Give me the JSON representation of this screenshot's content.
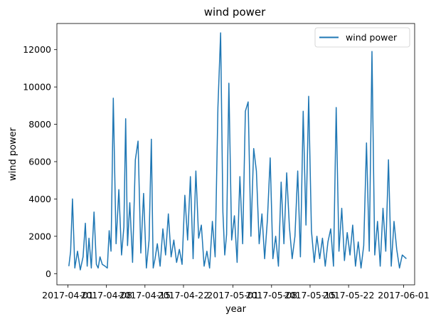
{
  "chart_data": {
    "type": "line",
    "title": "wind power",
    "xlabel": "year",
    "ylabel": "wind power",
    "x_ticks": [
      "2017-04-01",
      "2017-04-08",
      "2017-04-15",
      "2017-04-22",
      "2017-05-01",
      "2017-05-08",
      "2017-05-15",
      "2017-05-22",
      "2017-06-01"
    ],
    "y_ticks": [
      0,
      2000,
      4000,
      6000,
      8000,
      10000,
      12000
    ],
    "xlim": [
      "2017-03-30",
      "2017-06-03"
    ],
    "ylim": [
      -600,
      13400
    ],
    "legend": {
      "position": "top-right"
    },
    "grid": false,
    "series": [
      {
        "name": "wind power",
        "color": "#1f77b4",
        "x": [
          "2017-04-01",
          "2017-04-01",
          "2017-04-01",
          "2017-04-02",
          "2017-04-02",
          "2017-04-03",
          "2017-04-03",
          "2017-04-04",
          "2017-04-04",
          "2017-04-04",
          "2017-04-05",
          "2017-04-05",
          "2017-04-06",
          "2017-04-06",
          "2017-04-06",
          "2017-04-07",
          "2017-04-07",
          "2017-04-08",
          "2017-04-08",
          "2017-04-08",
          "2017-04-09",
          "2017-04-09",
          "2017-04-10",
          "2017-04-10",
          "2017-04-11",
          "2017-04-11",
          "2017-04-11",
          "2017-04-12",
          "2017-04-12",
          "2017-04-13",
          "2017-04-13",
          "2017-04-14",
          "2017-04-14",
          "2017-04-15",
          "2017-04-15",
          "2017-04-16",
          "2017-04-16",
          "2017-04-16",
          "2017-04-17",
          "2017-04-17",
          "2017-04-18",
          "2017-04-18",
          "2017-04-19",
          "2017-04-19",
          "2017-04-20",
          "2017-04-20",
          "2017-04-21",
          "2017-04-21",
          "2017-04-22",
          "2017-04-22",
          "2017-04-23",
          "2017-04-23",
          "2017-04-24",
          "2017-04-24",
          "2017-04-25",
          "2017-04-25",
          "2017-04-26",
          "2017-04-26",
          "2017-04-27",
          "2017-04-27",
          "2017-04-28",
          "2017-04-28",
          "2017-04-29",
          "2017-04-29",
          "2017-04-29",
          "2017-04-30",
          "2017-04-30",
          "2017-05-01",
          "2017-05-01",
          "2017-05-02",
          "2017-05-02",
          "2017-05-03",
          "2017-05-03",
          "2017-05-04",
          "2017-05-04",
          "2017-05-05",
          "2017-05-05",
          "2017-05-06",
          "2017-05-06",
          "2017-05-07",
          "2017-05-07",
          "2017-05-08",
          "2017-05-08",
          "2017-05-09",
          "2017-05-09",
          "2017-05-10",
          "2017-05-10",
          "2017-05-11",
          "2017-05-11",
          "2017-05-12",
          "2017-05-12",
          "2017-05-13",
          "2017-05-13",
          "2017-05-14",
          "2017-05-14",
          "2017-05-15",
          "2017-05-15",
          "2017-05-16",
          "2017-05-16",
          "2017-05-17",
          "2017-05-17",
          "2017-05-18",
          "2017-05-18",
          "2017-05-19",
          "2017-05-19",
          "2017-05-20",
          "2017-05-20",
          "2017-05-21",
          "2017-05-21",
          "2017-05-22",
          "2017-05-22",
          "2017-05-23",
          "2017-05-23",
          "2017-05-24",
          "2017-05-24",
          "2017-05-25",
          "2017-05-25",
          "2017-05-26",
          "2017-05-26",
          "2017-05-27",
          "2017-05-27",
          "2017-05-28",
          "2017-05-28",
          "2017-05-29",
          "2017-05-29",
          "2017-05-30",
          "2017-05-30",
          "2017-05-31",
          "2017-05-31",
          "2017-06-01"
        ],
        "values": [
          400,
          1200,
          4000,
          300,
          1200,
          200,
          900,
          2700,
          400,
          1900,
          300,
          3300,
          500,
          300,
          900,
          500,
          400,
          300,
          2300,
          1200,
          9400,
          1600,
          4500,
          1000,
          2500,
          8300,
          1500,
          3800,
          600,
          6100,
          7100,
          1100,
          4300,
          300,
          1800,
          7200,
          300,
          800,
          1600,
          400,
          2400,
          1000,
          3200,
          900,
          1800,
          600,
          1300,
          500,
          4200,
          1800,
          5200,
          800,
          5500,
          1900,
          2600,
          400,
          1200,
          300,
          2800,
          900,
          8900,
          12900,
          3300,
          1000,
          2100,
          10200,
          1800,
          3100,
          600,
          5200,
          1600,
          8700,
          9200,
          2000,
          6700,
          5500,
          1600,
          3200,
          800,
          2900,
          6200,
          800,
          2000,
          400,
          4900,
          1600,
          5400,
          2500,
          800,
          2000,
          5500,
          900,
          8700,
          2600,
          9500,
          2300,
          600,
          2000,
          800,
          1900,
          400,
          1700,
          2400,
          400,
          8900,
          1200,
          3500,
          700,
          2200,
          1000,
          2600,
          400,
          1700,
          300,
          1500,
          7000,
          1200,
          11900,
          1000,
          2800,
          400,
          3500,
          1200,
          6100,
          400,
          2800,
          1300,
          300,
          1000,
          800
        ]
      }
    ]
  }
}
